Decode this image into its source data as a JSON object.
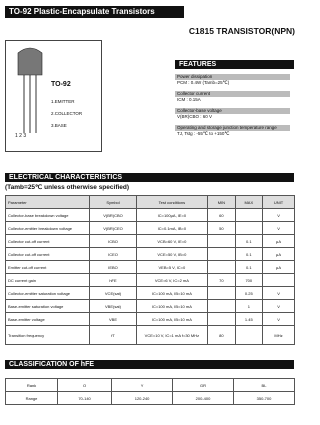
{
  "header": {
    "banner": "TO-92 Plastic-Encapsulate Transistors",
    "part": "C1815 TRANSISTOR(NPN)"
  },
  "package": {
    "name": "TO-92",
    "pins": [
      "1.EMITTER",
      "2.COLLECTOR",
      "3.BASE"
    ],
    "pin_numbers": "1 2 3"
  },
  "features": {
    "title": "FEATURES",
    "items": [
      {
        "label": "Power dissipation",
        "value": "PCM : 0.4W (Tamb=25℃)"
      },
      {
        "label": "Collector current",
        "value": "ICM : 0.15A"
      },
      {
        "label": "Collector-base voltage",
        "value": "V(BR)CBO : 60 V"
      },
      {
        "label": "Operating and storage junction temperature range",
        "value": "TJ, Tstg : -55℃ to +150℃"
      }
    ]
  },
  "electrical": {
    "title": "ELECTRICAL CHARACTERISTICS",
    "subtitle": "(Tamb=25℃ unless otherwise specified)",
    "header": {
      "parameter": "Parameter",
      "symbol": "Symbol",
      "conditions": "Test conditions",
      "min": "MIN",
      "max": "MAX",
      "unit": "UNIT"
    },
    "rows": [
      {
        "parameter": "Collector-base breakdown voltage",
        "symbol": "V(BR)CBO",
        "conditions": "IC=100μA, IE=0",
        "min": "60",
        "unit": "V"
      },
      {
        "parameter": "Collector-emitter breakdown voltage",
        "symbol": "V(BR)CEO",
        "conditions": "IC=0.1mA, IB=0",
        "min": "50",
        "unit": "V"
      },
      {
        "parameter": "Collector cut-off current",
        "symbol": "ICBO",
        "conditions": "VCB=60 V, IE=0",
        "max": "0.1",
        "unit": "μA"
      },
      {
        "parameter": "Collector cut-off current",
        "symbol": "ICEO",
        "conditions": "VCE=50 V, IB=0",
        "max": "0.1",
        "unit": "μA"
      },
      {
        "parameter": "Emitter cut-off current",
        "symbol": "IEBO",
        "conditions": "VEB=5 V, IC=0",
        "max": "0.1",
        "unit": "μA"
      },
      {
        "parameter": "DC current gain",
        "symbol": "hFE",
        "conditions": "VCE=6 V, IC=2 mA",
        "min": "70",
        "max": "700"
      },
      {
        "parameter": "Collector-emitter saturation voltage",
        "symbol": "VCE(sat)",
        "conditions": "IC=100 mA, IB=10 mA",
        "max": "0.25",
        "unit": "V"
      },
      {
        "parameter": "Base-emitter saturation voltage",
        "symbol": "VBE(sat)",
        "conditions": "IC=100 mA, IB=10 mA",
        "max": "1",
        "unit": "V"
      },
      {
        "parameter": "Base-emitter voltage",
        "symbol": "VBE",
        "conditions": "IC=100 mA, IB=10 mA",
        "max": "1.45",
        "unit": "V"
      },
      {
        "parameter": "Transition frequency",
        "symbol": "fT",
        "conditions": "VCE=10 V, IC=1 mA f=30 MHz",
        "min": "80",
        "unit": "MHz"
      }
    ]
  },
  "classification": {
    "title": "CLASSIFICATION OF hFE",
    "rows": [
      [
        "Rank",
        "O",
        "Y",
        "GR",
        "BL"
      ],
      [
        "Range",
        "70-140",
        "120-240",
        "200-400",
        "350-700"
      ]
    ]
  }
}
